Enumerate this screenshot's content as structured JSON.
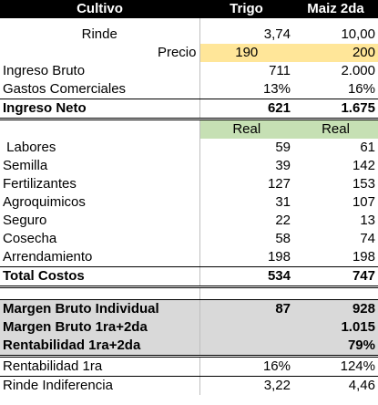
{
  "header": {
    "col1": "Cultivo",
    "col2": "Trigo",
    "col3": "Maiz 2da"
  },
  "rinde": {
    "label": "Rinde",
    "trigo": "3,74",
    "maiz": "10,00"
  },
  "precio": {
    "label": "Precio",
    "trigo": "190",
    "maiz": "200"
  },
  "ingreso_bruto": {
    "label": "Ingreso Bruto",
    "trigo": "711",
    "maiz": "2.000"
  },
  "gastos_comerciales": {
    "label": "Gastos Comerciales",
    "trigo": "13%",
    "maiz": "16%"
  },
  "ingreso_neto": {
    "label": "Ingreso Neto",
    "trigo": "621",
    "maiz": "1.675"
  },
  "real_header": {
    "trigo": "Real",
    "maiz": "Real"
  },
  "costs": [
    {
      "label": " Labores",
      "trigo": "59",
      "maiz": "61"
    },
    {
      "label": "Semilla",
      "trigo": "39",
      "maiz": "142"
    },
    {
      "label": "Fertilizantes",
      "trigo": "127",
      "maiz": "153"
    },
    {
      "label": "Agroquimicos",
      "trigo": "31",
      "maiz": "107"
    },
    {
      "label": "Seguro",
      "trigo": "22",
      "maiz": "13"
    },
    {
      "label": "Cosecha",
      "trigo": "58",
      "maiz": "74"
    },
    {
      "label": "Arrendamiento",
      "trigo": "198",
      "maiz": "198"
    }
  ],
  "total_costos": {
    "label": "Total Costos",
    "trigo": "534",
    "maiz": "747"
  },
  "margen_individual": {
    "label": "Margen Bruto Individual",
    "trigo": "87",
    "maiz": "928"
  },
  "margen_combined": {
    "label": "Margen Bruto 1ra+2da",
    "trigo": "",
    "maiz": "1.015"
  },
  "rentabilidad_combined": {
    "label": "Rentabilidad 1ra+2da",
    "trigo": "",
    "maiz": "79%"
  },
  "rentabilidad_1ra": {
    "label": "Rentabilidad 1ra",
    "trigo": "16%",
    "maiz": "124%"
  },
  "rinde_indiferencia": {
    "label": "Rinde Indiferencia",
    "trigo": "3,22",
    "maiz": "4,46"
  },
  "colors": {
    "header_bg": "#000000",
    "precio_bg": "#ffe699",
    "real_bg": "#c6e0b4",
    "margin_bg": "#d9d9d9"
  }
}
